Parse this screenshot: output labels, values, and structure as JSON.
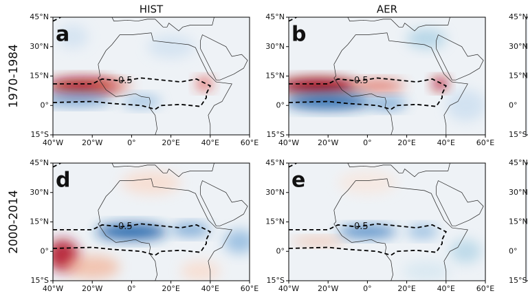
{
  "columns": [
    "HIST",
    "AER"
  ],
  "rows": [
    "1970-1984",
    "2000-2014"
  ],
  "lat_ticks": [
    "45°N",
    "30°N",
    "15°N",
    "0°",
    "15°S"
  ],
  "lon_ticks": [
    "40°W",
    "20°W",
    "0°",
    "20°E",
    "40°E",
    "60°E"
  ],
  "panels": [
    {
      "letter": "a",
      "contour_label": "-0.5"
    },
    {
      "letter": "b",
      "contour_label": "-0.5"
    },
    {
      "letter": "d",
      "contour_label": "-0.5"
    },
    {
      "letter": "e",
      "contour_label": "-0.5"
    }
  ]
}
